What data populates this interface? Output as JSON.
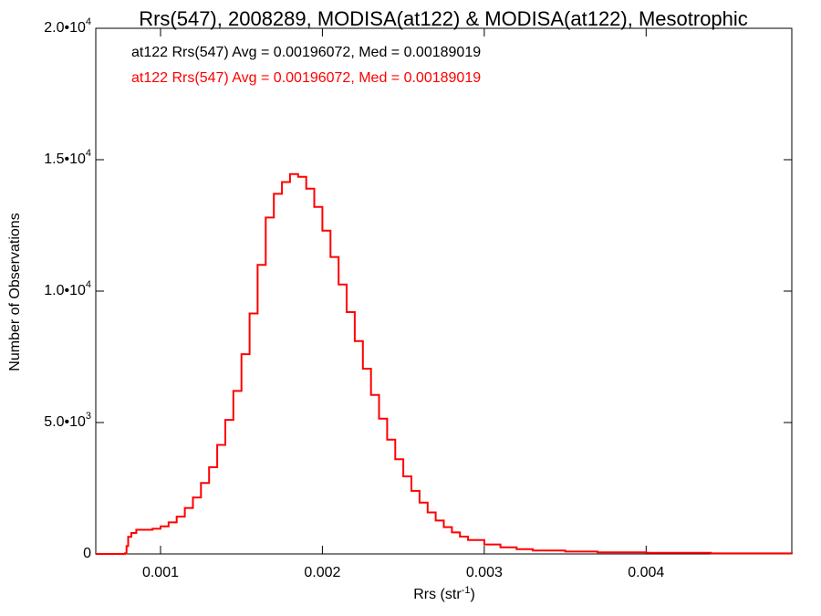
{
  "chart_data": {
    "type": "line",
    "title": "Rrs(547), 2008289, MODISA(at122) & MODISA(at122), Mesotrophic",
    "xlabel": {
      "base": "Rrs (str",
      "sup": "-1",
      "tail": ")"
    },
    "ylabel": "Number of Observations",
    "xlim": [
      0.0006,
      0.0049
    ],
    "ylim": [
      0,
      20000
    ],
    "grid": false,
    "x_ticks": [
      {
        "value": 0.001,
        "label": "0.001"
      },
      {
        "value": 0.002,
        "label": "0.002"
      },
      {
        "value": 0.003,
        "label": "0.003"
      },
      {
        "value": 0.004,
        "label": "0.004"
      }
    ],
    "y_ticks": [
      {
        "value": 0,
        "mant": "0",
        "exp": ""
      },
      {
        "value": 5000,
        "mant": "5.0•10",
        "exp": "3"
      },
      {
        "value": 10000,
        "mant": "1.0•10",
        "exp": "4"
      },
      {
        "value": 15000,
        "mant": "1.5•10",
        "exp": "4"
      },
      {
        "value": 20000,
        "mant": "2.0•10",
        "exp": "4"
      }
    ],
    "annotations": [
      {
        "text": "at122 Rrs(547) Avg = 0.00196072, Med = 0.00189019",
        "color": "#000000"
      },
      {
        "text": "at122 Rrs(547) Avg = 0.00196072, Med = 0.00189019",
        "color": "#ff0000"
      }
    ],
    "series": [
      {
        "color": "#ff0000",
        "step": true,
        "points": [
          [
            0.0006,
            0
          ],
          [
            0.00075,
            0
          ],
          [
            0.00078,
            20
          ],
          [
            0.00079,
            300
          ],
          [
            0.0008,
            650
          ],
          [
            0.00082,
            800
          ],
          [
            0.00085,
            920
          ],
          [
            0.0009,
            920
          ],
          [
            0.00095,
            960
          ],
          [
            0.001,
            1050
          ],
          [
            0.00105,
            1200
          ],
          [
            0.0011,
            1420
          ],
          [
            0.00115,
            1750
          ],
          [
            0.0012,
            2150
          ],
          [
            0.00125,
            2700
          ],
          [
            0.0013,
            3300
          ],
          [
            0.00135,
            4150
          ],
          [
            0.0014,
            5100
          ],
          [
            0.00145,
            6200
          ],
          [
            0.0015,
            7600
          ],
          [
            0.00155,
            9150
          ],
          [
            0.0016,
            11000
          ],
          [
            0.00165,
            12800
          ],
          [
            0.0017,
            13700
          ],
          [
            0.00175,
            14150
          ],
          [
            0.0018,
            14450
          ],
          [
            0.00185,
            14350
          ],
          [
            0.0019,
            13900
          ],
          [
            0.00195,
            13200
          ],
          [
            0.002,
            12300
          ],
          [
            0.00205,
            11300
          ],
          [
            0.0021,
            10250
          ],
          [
            0.00215,
            9200
          ],
          [
            0.0022,
            8100
          ],
          [
            0.00225,
            7050
          ],
          [
            0.0023,
            6050
          ],
          [
            0.00235,
            5150
          ],
          [
            0.0024,
            4350
          ],
          [
            0.00245,
            3600
          ],
          [
            0.0025,
            2950
          ],
          [
            0.00255,
            2400
          ],
          [
            0.0026,
            1950
          ],
          [
            0.00265,
            1580
          ],
          [
            0.0027,
            1270
          ],
          [
            0.00275,
            1020
          ],
          [
            0.0028,
            820
          ],
          [
            0.00285,
            660
          ],
          [
            0.0029,
            530
          ],
          [
            0.003,
            360
          ],
          [
            0.0031,
            250
          ],
          [
            0.0032,
            180
          ],
          [
            0.0033,
            130
          ],
          [
            0.0035,
            90
          ],
          [
            0.0037,
            60
          ],
          [
            0.004,
            40
          ],
          [
            0.0044,
            20
          ],
          [
            0.0049,
            10
          ]
        ]
      }
    ]
  }
}
